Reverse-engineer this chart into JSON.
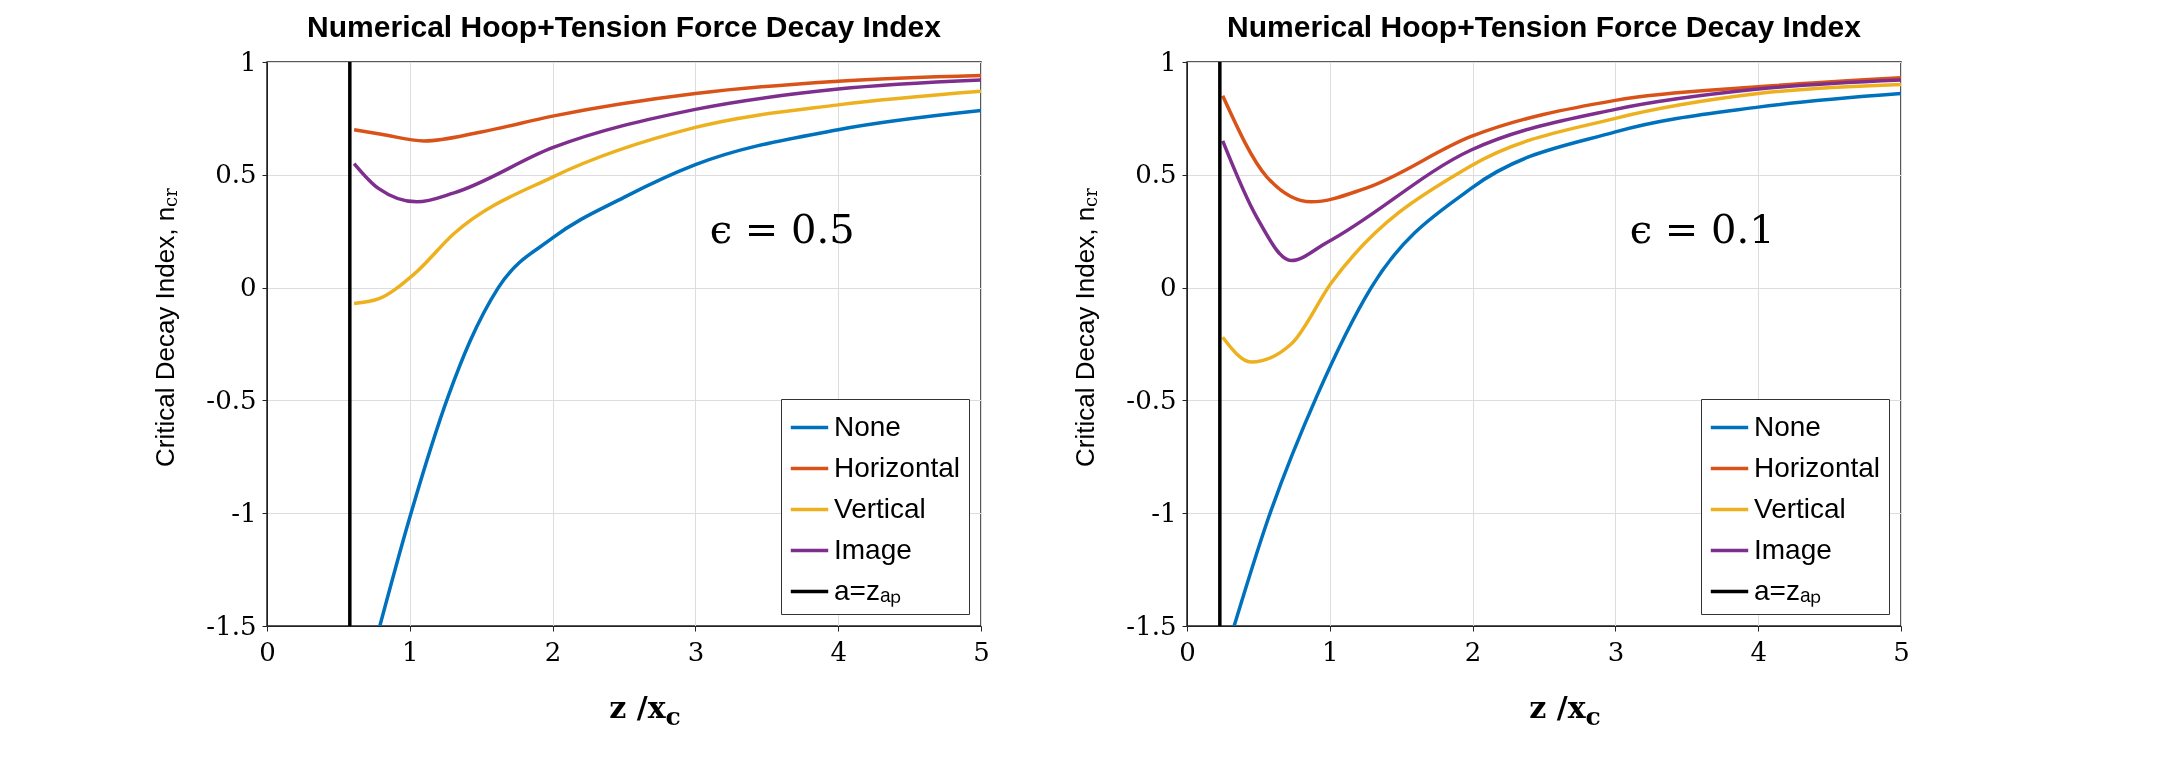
{
  "chart_data": [
    {
      "type": "line",
      "title": "Numerical Hoop+Tension Force Decay Index",
      "xlabel": "z   /x$_{c}$",
      "ylabel": "Critical Decay Index, n$_{cr}$",
      "annotations": [
        "ϵ = 0.5"
      ],
      "xlim": [
        0,
        5
      ],
      "xticks": [
        0,
        1,
        2,
        3,
        4,
        5
      ],
      "ylim": [
        -1.5,
        1
      ],
      "yticks": [
        -1.5,
        -1,
        -0.5,
        0,
        0.5,
        1
      ],
      "grid": true,
      "legend": "bottom right",
      "series": [
        {
          "name": "None",
          "color": "#0072bd",
          "x": [
            0.79,
            0.99,
            1.27,
            1.42,
            1.62,
            2,
            2.5,
            3,
            4,
            5
          ],
          "values": [
            -1.5,
            -1.04,
            -0.48,
            -0.24,
            0,
            0.22,
            0.4,
            0.545,
            0.7,
            0.785
          ]
        },
        {
          "name": "Horizontal",
          "color": "#d95319",
          "x": [
            0.61,
            0.8,
            1.1,
            1.5,
            2,
            3,
            4,
            5
          ],
          "values": [
            0.7,
            0.68,
            0.65,
            0.69,
            0.76,
            0.86,
            0.915,
            0.94
          ]
        },
        {
          "name": "Vertical",
          "color": "#edb120",
          "x": [
            0.61,
            0.78,
            1.03,
            1.31,
            2,
            3,
            4,
            5
          ],
          "values": [
            -0.07,
            -0.05,
            0.06,
            0.24,
            0.49,
            0.71,
            0.81,
            0.87
          ]
        },
        {
          "name": "Image",
          "color": "#7e2f8e",
          "x": [
            0.61,
            0.78,
            1.05,
            1.31,
            2,
            3,
            4,
            5
          ],
          "values": [
            0.55,
            0.44,
            0.38,
            0.42,
            0.62,
            0.79,
            0.88,
            0.92
          ]
        },
        {
          "name": "a=zₐₚ",
          "color": "#000000",
          "x": [
            0.58,
            0.58
          ],
          "values": [
            -1.5,
            1
          ]
        }
      ]
    },
    {
      "type": "line",
      "title": "Numerical Hoop+Tension Force Decay Index",
      "xlabel": "z   /x$_{c}$",
      "ylabel": "Critical Decay Index, n$_{cr}$",
      "annotations": [
        "ϵ = 0.1"
      ],
      "xlim": [
        0,
        5
      ],
      "xticks": [
        0,
        1,
        2,
        3,
        4,
        5
      ],
      "ylim": [
        -1.5,
        1
      ],
      "yticks": [
        -1.5,
        -1,
        -0.5,
        0,
        0.5,
        1
      ],
      "grid": true,
      "legend": "bottom right",
      "series": [
        {
          "name": "None",
          "color": "#0072bd",
          "x": [
            0.33,
            0.56,
            0.91,
            1.29,
            1.99,
            3,
            4,
            5
          ],
          "values": [
            -1.5,
            -1.04,
            -0.48,
            0,
            0.44,
            0.69,
            0.8,
            0.86
          ]
        },
        {
          "name": "Horizontal",
          "color": "#d95319",
          "x": [
            0.25,
            0.56,
            0.87,
            1.25,
            1.99,
            3,
            4,
            5
          ],
          "values": [
            0.85,
            0.49,
            0.38,
            0.44,
            0.67,
            0.83,
            0.89,
            0.93
          ]
        },
        {
          "name": "Vertical",
          "color": "#edb120",
          "x": [
            0.25,
            0.45,
            0.73,
            1.01,
            1.99,
            3,
            4,
            5
          ],
          "values": [
            -0.22,
            -0.33,
            -0.25,
            0.02,
            0.54,
            0.75,
            0.86,
            0.9
          ]
        },
        {
          "name": "Image",
          "color": "#7e2f8e",
          "x": [
            0.25,
            0.49,
            0.73,
            0.98,
            1.99,
            3,
            4,
            5
          ],
          "values": [
            0.65,
            0.31,
            0.12,
            0.2,
            0.61,
            0.79,
            0.88,
            0.92
          ]
        },
        {
          "name": "a=zₐₚ",
          "color": "#000000",
          "x": [
            0.23,
            0.23
          ],
          "values": [
            -1.5,
            1
          ]
        }
      ]
    }
  ]
}
